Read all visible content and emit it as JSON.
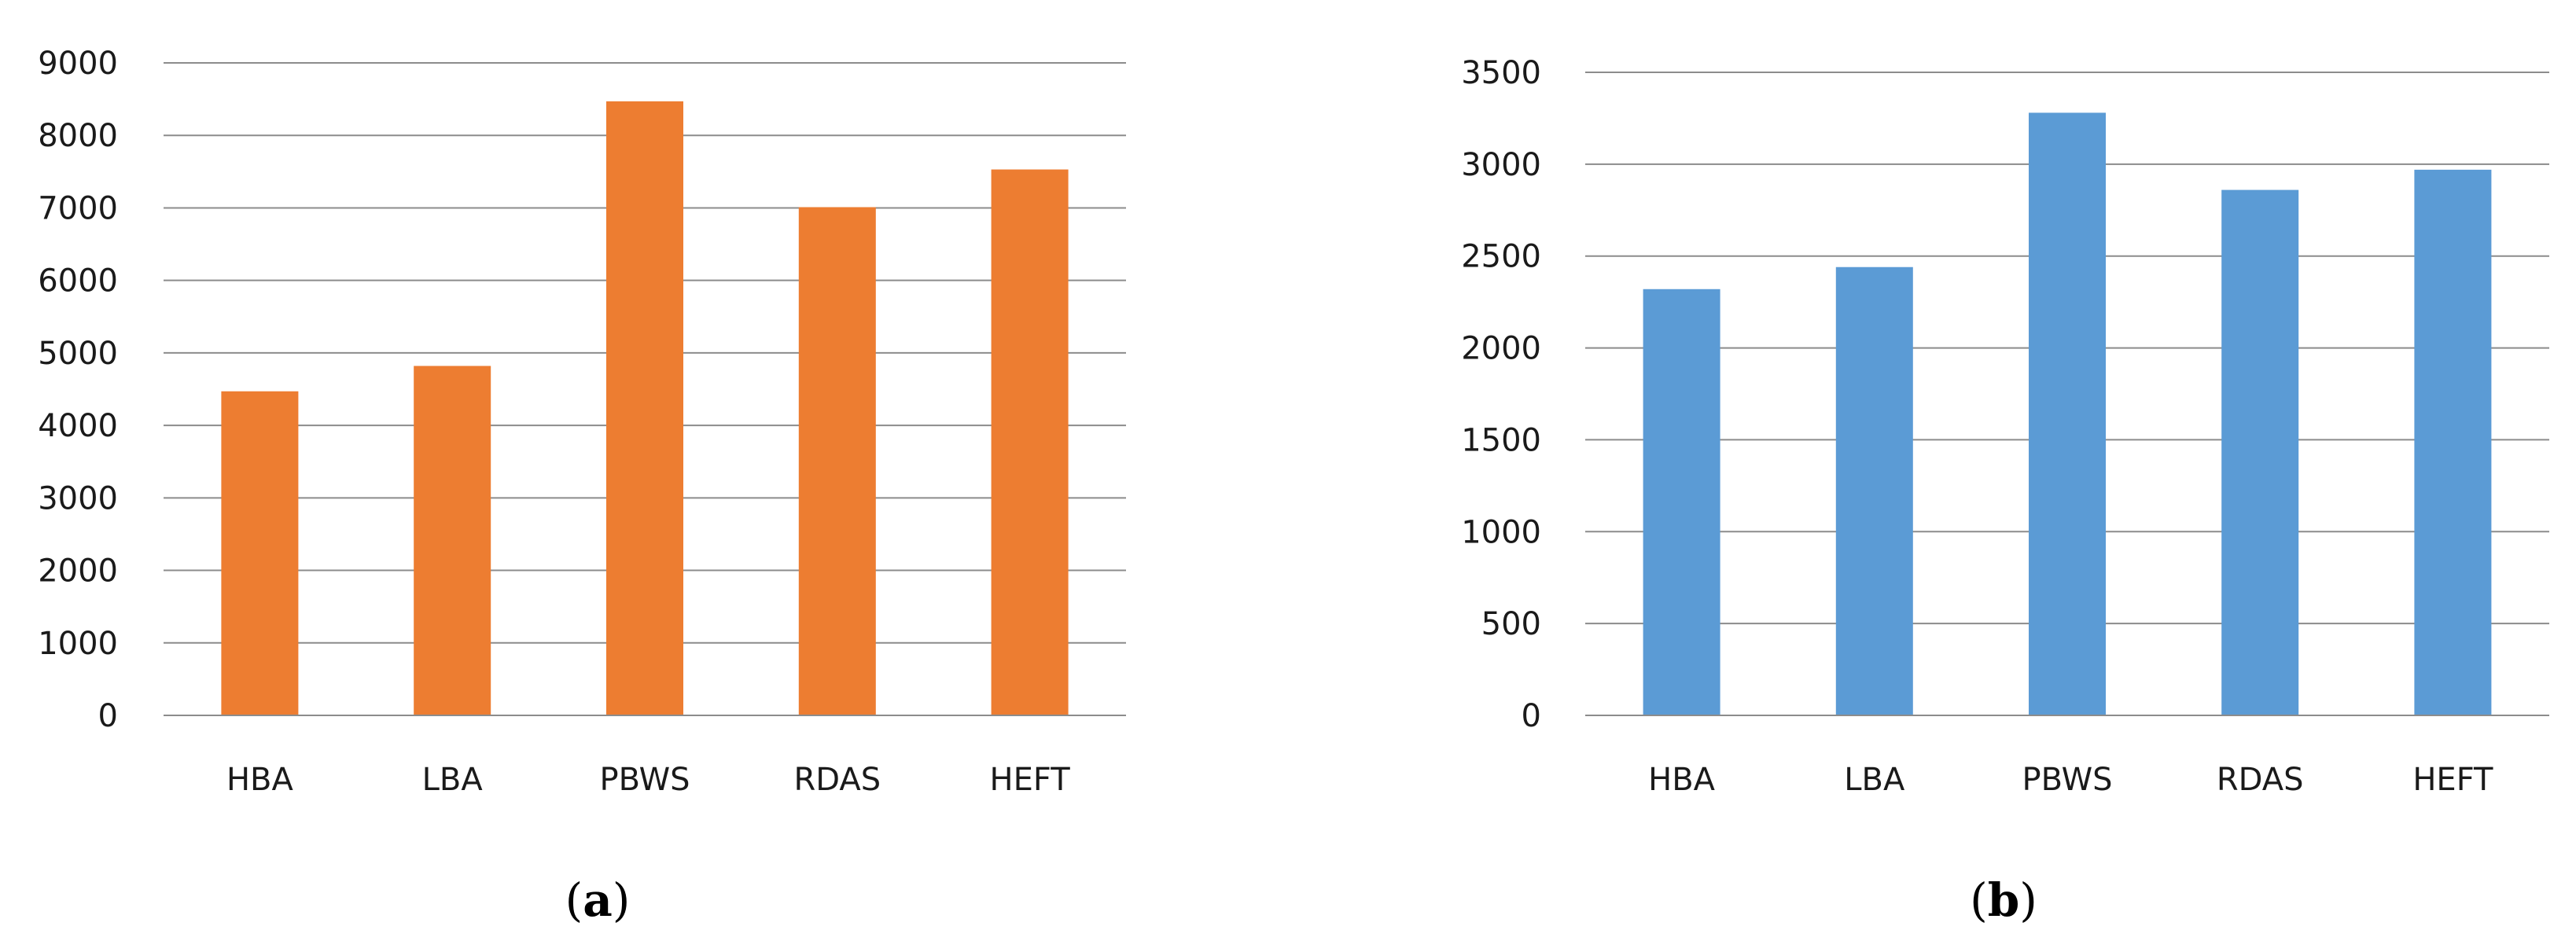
{
  "chart_data": [
    {
      "type": "bar",
      "panel_label": "a",
      "categories": [
        "HBA",
        "LBA",
        "PBWS",
        "RDAS",
        "HEFT"
      ],
      "values": [
        4470,
        4820,
        8470,
        7010,
        7530
      ],
      "ylim": [
        0,
        9000
      ],
      "ytick_step": 1000,
      "yticks": [
        "0",
        "1000",
        "2000",
        "3000",
        "4000",
        "5000",
        "6000",
        "7000",
        "8000",
        "9000"
      ],
      "grid": true,
      "legend": "none",
      "color": "#ED7D31"
    },
    {
      "type": "bar",
      "panel_label": "b",
      "categories": [
        "HBA",
        "LBA",
        "PBWS",
        "RDAS",
        "HEFT"
      ],
      "values": [
        2320,
        2440,
        3280,
        2860,
        2970
      ],
      "ylim": [
        0,
        3500
      ],
      "ytick_step": 500,
      "yticks": [
        "0",
        "500",
        "1000",
        "1500",
        "2000",
        "2500",
        "3000",
        "3500"
      ],
      "grid": true,
      "legend": "none",
      "color": "#5B9BD5"
    }
  ]
}
